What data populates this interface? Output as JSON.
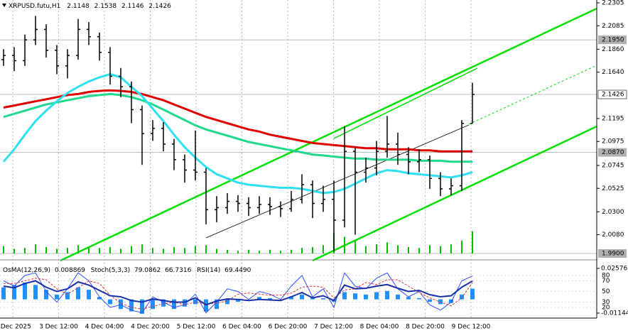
{
  "chart_data": [
    {
      "type": "ohlc",
      "title": "XRPUSD.futu,H1",
      "quote": [
        2.1148,
        2.1538,
        2.1146,
        2.1426
      ],
      "x_labels": [
        "2 Dec 2025",
        "3 Dec 12:00",
        "4 Dec 04:00",
        "4 Dec 20:00",
        "5 Dec 12:00",
        "6 Dec 04:00",
        "6 Dec 20:00",
        "7 Dec 12:00",
        "8 Dec 04:00",
        "8 Dec 20:00",
        "9 Dec 12:00"
      ],
      "ylim": [
        1.99,
        2.2305
      ],
      "yticks": [
        2.2305,
        2.2085,
        {
          "value": 2.186,
          "label": "2.1860"
        },
        {
          "value": 2.164,
          "label": "2.1640"
        },
        2.1195,
        2.0975,
        2.0745,
        2.0525,
        {
          "value": 2.03,
          "label": "2.0300"
        },
        {
          "value": 2.008,
          "label": "2.0080"
        }
      ],
      "price_levels": [
        {
          "value": 2.195,
          "label": "2.1950"
        },
        {
          "value": 2.1426,
          "label": "2.1426"
        },
        {
          "value": 2.087,
          "label": "2.0870"
        },
        {
          "value": 1.99,
          "label": "1.9900"
        }
      ],
      "bar_color": "#000000",
      "open": [
        2.176,
        2.18,
        2.175,
        2.195,
        2.205,
        2.185,
        2.17,
        2.18,
        2.205,
        2.198,
        2.183,
        2.16,
        2.15,
        2.128,
        2.105,
        2.11,
        2.095,
        2.08,
        2.07,
        2.068,
        2.032,
        2.034,
        2.04,
        2.038,
        2.034,
        2.037,
        2.035,
        2.033,
        2.042,
        2.056,
        2.038,
        2.042,
        2.022,
        2.088,
        2.068,
        2.072,
        2.088,
        2.095,
        2.085,
        2.078,
        2.08,
        2.062,
        2.052,
        2.055,
        2.1148
      ],
      "high": [
        2.186,
        2.188,
        2.2,
        2.218,
        2.21,
        2.19,
        2.186,
        2.215,
        2.212,
        2.202,
        2.188,
        2.168,
        2.155,
        2.132,
        2.118,
        2.116,
        2.1,
        2.085,
        2.108,
        2.072,
        2.045,
        2.048,
        2.046,
        2.044,
        2.045,
        2.044,
        2.04,
        2.05,
        2.066,
        2.06,
        2.055,
        2.06,
        2.112,
        2.092,
        2.082,
        2.098,
        2.122,
        2.106,
        2.092,
        2.09,
        2.084,
        2.068,
        2.062,
        2.118,
        2.1538
      ],
      "low": [
        2.17,
        2.165,
        2.17,
        2.19,
        2.178,
        2.162,
        2.158,
        2.176,
        2.19,
        2.175,
        2.152,
        2.14,
        2.115,
        2.075,
        2.098,
        2.088,
        2.07,
        2.058,
        2.06,
        2.018,
        2.02,
        2.028,
        2.03,
        2.026,
        2.028,
        2.027,
        2.025,
        2.03,
        2.038,
        2.024,
        2.03,
        1.992,
        2.015,
        2.008,
        2.058,
        2.065,
        2.082,
        2.075,
        2.066,
        2.068,
        2.052,
        2.045,
        2.046,
        2.05,
        2.1146
      ],
      "close": [
        2.18,
        2.175,
        2.195,
        2.205,
        2.185,
        2.17,
        2.18,
        2.205,
        2.198,
        2.183,
        2.16,
        2.15,
        2.128,
        2.105,
        2.11,
        2.095,
        2.08,
        2.07,
        2.068,
        2.032,
        2.034,
        2.04,
        2.038,
        2.034,
        2.037,
        2.035,
        2.033,
        2.042,
        2.056,
        2.038,
        2.042,
        2.022,
        2.088,
        2.068,
        2.072,
        2.088,
        2.095,
        2.085,
        2.078,
        2.08,
        2.062,
        2.052,
        2.055,
        2.1148,
        2.1426
      ],
      "volume": [
        8,
        5,
        6,
        10,
        7,
        5,
        6,
        9,
        7,
        6,
        7,
        5,
        8,
        10,
        6,
        5,
        7,
        6,
        8,
        9,
        5,
        4,
        3,
        4,
        3,
        4,
        3,
        4,
        6,
        7,
        9,
        22,
        18,
        14,
        8,
        10,
        12,
        9,
        7,
        6,
        9,
        8,
        10,
        14,
        24
      ],
      "volume_color": "#00c000",
      "series": [
        {
          "color": "#e00000",
          "values": [
            2.13,
            2.132,
            2.134,
            2.136,
            2.138,
            2.14,
            2.142,
            2.143,
            2.145,
            2.146,
            2.1465,
            2.146,
            2.145,
            2.143,
            2.14,
            2.137,
            2.133,
            2.129,
            2.125,
            2.121,
            2.118,
            2.115,
            2.112,
            2.109,
            2.107,
            2.104,
            2.102,
            2.1,
            2.098,
            2.096,
            2.095,
            2.094,
            2.093,
            2.092,
            2.091,
            2.091,
            2.09,
            2.09,
            2.09,
            2.089,
            2.089,
            2.088,
            2.088,
            2.088,
            2.088
          ]
        },
        {
          "color": "#20d890",
          "values": [
            2.121,
            2.124,
            2.127,
            2.13,
            2.133,
            2.135,
            2.137,
            2.139,
            2.141,
            2.142,
            2.143,
            2.142,
            2.14,
            2.137,
            2.133,
            2.128,
            2.123,
            2.118,
            2.113,
            2.109,
            2.106,
            2.103,
            2.1,
            2.097,
            2.095,
            2.093,
            2.091,
            2.089,
            2.087,
            2.085,
            2.084,
            2.083,
            2.082,
            2.081,
            2.081,
            2.08,
            2.08,
            2.08,
            2.08,
            2.079,
            2.079,
            2.079,
            2.078,
            2.078,
            2.078
          ]
        },
        {
          "color": "#30e0f0",
          "values": [
            2.078,
            2.09,
            2.104,
            2.117,
            2.127,
            2.136,
            2.144,
            2.15,
            2.155,
            2.159,
            2.162,
            2.159,
            2.15,
            2.141,
            2.129,
            2.117,
            2.104,
            2.092,
            2.082,
            2.073,
            2.066,
            2.062,
            2.058,
            2.056,
            2.055,
            2.054,
            2.053,
            2.053,
            2.052,
            2.05,
            2.048,
            2.049,
            2.052,
            2.057,
            2.062,
            2.067,
            2.07,
            2.069,
            2.067,
            2.066,
            2.065,
            2.064,
            2.063,
            2.065,
            2.068
          ]
        }
      ]
    },
    {
      "type": "oscillator",
      "ylim": [
        0,
        100
      ],
      "yticks": [
        80,
        70,
        50,
        30,
        20
      ],
      "y2lim": [
        -0.01144,
        0.02576
      ],
      "y2ticks": [
        0.02576,
        -0.01144
      ],
      "series": [
        {
          "name": "OsMA(12,26,9)",
          "axis": "y2",
          "kind": "histogram",
          "color": "#1e90ff",
          "values": [
            0.01,
            0.012,
            0.014,
            0.012,
            0.008,
            0.004,
            0.006,
            0.01,
            0.008,
            0.002,
            -0.004,
            -0.008,
            -0.01,
            -0.012,
            -0.008,
            -0.006,
            -0.008,
            -0.006,
            -0.004,
            -0.01,
            -0.008,
            -0.004,
            -0.002,
            0.0,
            0.002,
            0.001,
            0.0,
            0.002,
            0.004,
            0.002,
            0.001,
            -0.002,
            0.006,
            0.005,
            0.004,
            0.006,
            0.007,
            0.004,
            0.002,
            0.001,
            -0.002,
            -0.004,
            -0.003,
            0.004,
            0.008869
          ]
        },
        {
          "name": "Stoch(5,3,3)",
          "kind": "line",
          "color": "#3050ff",
          "values": [
            70,
            60,
            80,
            85,
            50,
            30,
            55,
            85,
            70,
            40,
            20,
            25,
            15,
            10,
            40,
            30,
            20,
            25,
            45,
            10,
            30,
            55,
            50,
            35,
            50,
            45,
            35,
            60,
            80,
            40,
            55,
            20,
            85,
            60,
            55,
            75,
            85,
            55,
            40,
            50,
            25,
            15,
            30,
            70,
            79.0862
          ]
        },
        {
          "kind": "dashed",
          "color": "#e03030",
          "values": [
            65,
            65,
            70,
            75,
            72,
            55,
            45,
            57,
            70,
            65,
            43,
            28,
            20,
            17,
            22,
            27,
            30,
            25,
            30,
            27,
            28,
            32,
            45,
            47,
            45,
            43,
            43,
            47,
            58,
            60,
            58,
            38,
            53,
            55,
            67,
            63,
            72,
            72,
            60,
            48,
            38,
            30,
            23,
            38,
            66.7316
          ]
        },
        {
          "name": "RSI(14)",
          "kind": "thick",
          "color": "#1a2fa8",
          "last_label": "69.4490",
          "values": [
            60,
            57,
            65,
            70,
            58,
            50,
            55,
            68,
            62,
            52,
            42,
            40,
            33,
            30,
            36,
            33,
            30,
            30,
            38,
            25,
            32,
            36,
            35,
            33,
            35,
            34,
            33,
            40,
            48,
            38,
            42,
            33,
            62,
            55,
            56,
            60,
            63,
            56,
            50,
            52,
            44,
            40,
            42,
            58,
            69.449
          ]
        }
      ]
    }
  ]
}
